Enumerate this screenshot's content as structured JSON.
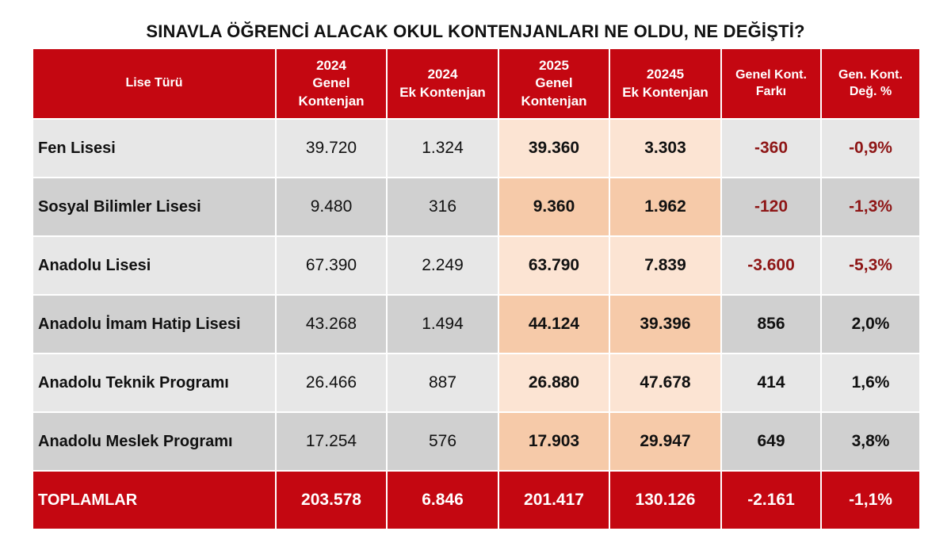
{
  "chart_data": {
    "type": "table",
    "title": "SINAVLA ÖĞRENCİ ALACAK OKUL KONTENJANLARI NE OLDU, NE DEĞİŞTİ?",
    "headers": [
      [
        "Lise Türü"
      ],
      [
        "2024",
        "Genel",
        "Kontenjan"
      ],
      [
        "2024",
        "Ek Kontenjan"
      ],
      [
        "2025",
        "Genel",
        "Kontenjan"
      ],
      [
        "20245",
        "Ek Kontenjan"
      ],
      [
        "Genel Kont.",
        "Farkı"
      ],
      [
        "Gen. Kont.",
        "Değ. %"
      ]
    ],
    "rows": [
      {
        "name": "Fen Lisesi",
        "g2024": "39.720",
        "e2024": "1.324",
        "g2025": "39.360",
        "e2025": "3.303",
        "diff": "-360",
        "pct": "-0,9%"
      },
      {
        "name": "Sosyal Bilimler Lisesi",
        "g2024": "9.480",
        "e2024": "316",
        "g2025": "9.360",
        "e2025": "1.962",
        "diff": "-120",
        "pct": "-1,3%"
      },
      {
        "name": "Anadolu Lisesi",
        "g2024": "67.390",
        "e2024": "2.249",
        "g2025": "63.790",
        "e2025": "7.839",
        "diff": "-3.600",
        "pct": "-5,3%"
      },
      {
        "name": "Anadolu İmam Hatip Lisesi",
        "g2024": "43.268",
        "e2024": "1.494",
        "g2025": "44.124",
        "e2025": "39.396",
        "diff": "856",
        "pct": "2,0%"
      },
      {
        "name": "Anadolu Teknik Programı",
        "g2024": "26.466",
        "e2024": "887",
        "g2025": "26.880",
        "e2025": "47.678",
        "diff": "414",
        "pct": "1,6%"
      },
      {
        "name": "Anadolu Meslek Programı",
        "g2024": "17.254",
        "e2024": "576",
        "g2025": "17.903",
        "e2025": "29.947",
        "diff": "649",
        "pct": "3,8%"
      }
    ],
    "totals": {
      "name": "TOPLAMLAR",
      "g2024": "203.578",
      "e2024": "6.846",
      "g2025": "201.417",
      "e2025": "130.126",
      "diff": "-2.161",
      "pct": "-1,1%"
    }
  },
  "colors": {
    "header_red": "#c40711",
    "negative_text": "#8e1616",
    "row_light": "#e7e7e7",
    "row_dark": "#d0d0d0",
    "highlight_light": "#fce4d3",
    "highlight_dark": "#f6caa9"
  }
}
